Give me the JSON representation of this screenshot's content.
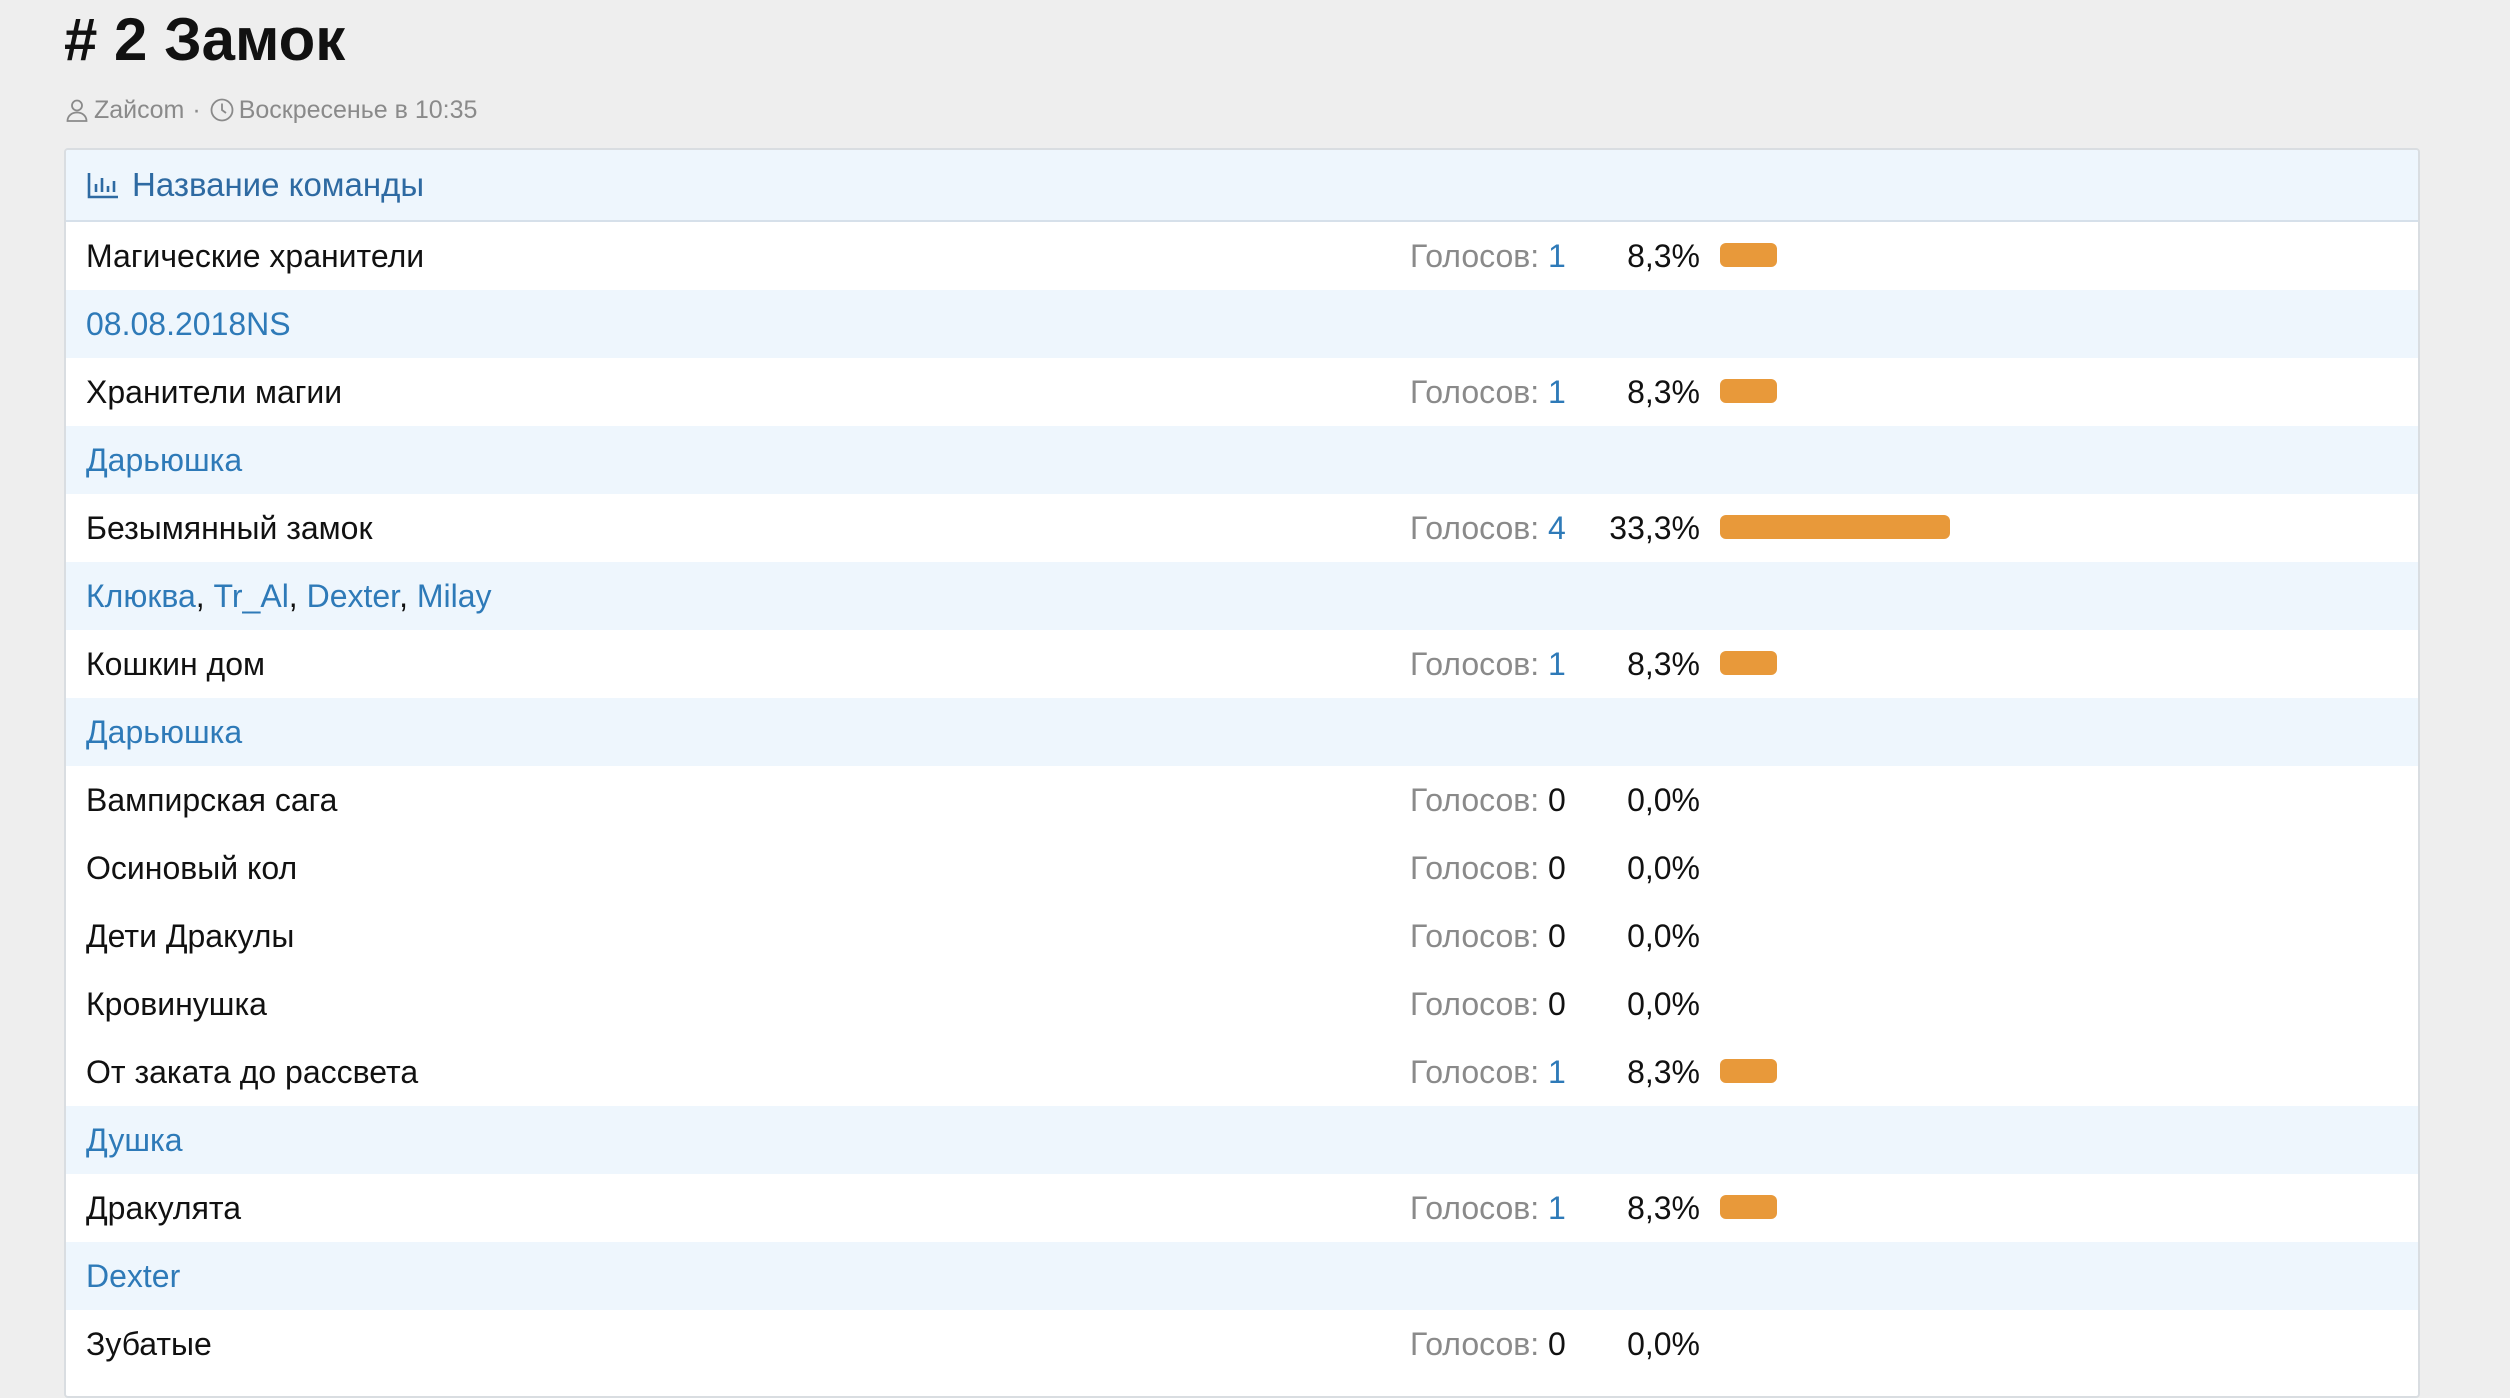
{
  "topic": {
    "title": "# 2 Замок",
    "author": "Zaйcom",
    "separator": "·",
    "time": "Воскресенье в 10:35"
  },
  "poll": {
    "question": "Название команды",
    "votes_label": "Голосов:",
    "bar_color": "#e8993a",
    "link_color": "#2e7ab8",
    "rows": [
      {
        "kind": "option",
        "label": "Магические хранители",
        "votes": "1",
        "percent": "8,3%",
        "share": 0.083
      },
      {
        "kind": "voters",
        "names": [
          "08.08.2018NS"
        ]
      },
      {
        "kind": "option",
        "label": "Хранители магии",
        "votes": "1",
        "percent": "8,3%",
        "share": 0.083
      },
      {
        "kind": "voters",
        "names": [
          "Дарьюшка"
        ]
      },
      {
        "kind": "option",
        "label": "Безымянный замок",
        "votes": "4",
        "percent": "33,3%",
        "share": 0.333
      },
      {
        "kind": "voters",
        "names": [
          "Клюква",
          "Tr_Al",
          "Dexter",
          "Milay"
        ]
      },
      {
        "kind": "option",
        "label": "Кошкин дом",
        "votes": "1",
        "percent": "8,3%",
        "share": 0.083
      },
      {
        "kind": "voters",
        "names": [
          "Дарьюшка"
        ]
      },
      {
        "kind": "option",
        "label": "Вампирская сага",
        "votes": "0",
        "percent": "0,0%",
        "share": 0
      },
      {
        "kind": "option",
        "label": "Осиновый кол",
        "votes": "0",
        "percent": "0,0%",
        "share": 0
      },
      {
        "kind": "option",
        "label": "Дети Дракулы",
        "votes": "0",
        "percent": "0,0%",
        "share": 0
      },
      {
        "kind": "option",
        "label": "Кровинушка",
        "votes": "0",
        "percent": "0,0%",
        "share": 0
      },
      {
        "kind": "option",
        "label": "От заката до рассвета",
        "votes": "1",
        "percent": "8,3%",
        "share": 0.083
      },
      {
        "kind": "voters",
        "names": [
          "Душка"
        ]
      },
      {
        "kind": "option",
        "label": "Дракулята",
        "votes": "1",
        "percent": "8,3%",
        "share": 0.083
      },
      {
        "kind": "voters",
        "names": [
          "Dexter"
        ]
      },
      {
        "kind": "option",
        "label": "Зубатые",
        "votes": "0",
        "percent": "0,0%",
        "share": 0
      }
    ]
  }
}
